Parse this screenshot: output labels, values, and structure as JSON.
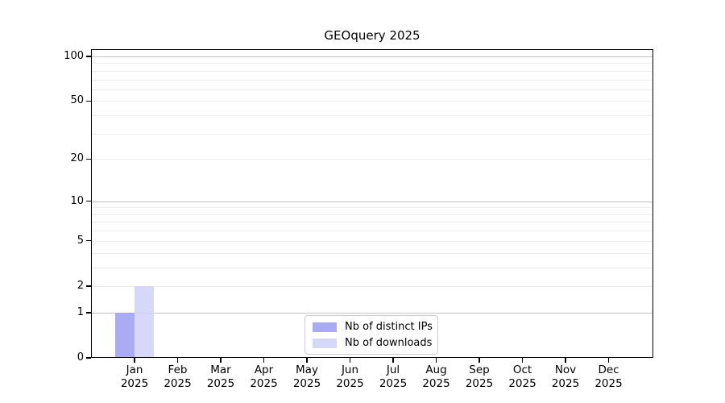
{
  "figure": {
    "title": "GEOquery 2025"
  },
  "chart_data": {
    "type": "bar",
    "title": "GEOquery 2025",
    "categories": [
      "Jan",
      "Feb",
      "Mar",
      "Apr",
      "May",
      "Jun",
      "Jul",
      "Aug",
      "Sep",
      "Oct",
      "Nov",
      "Dec"
    ],
    "category_year": "2025",
    "series": [
      {
        "name": "Nb of distinct IPs",
        "color": "#9f9ff2",
        "values": [
          1,
          0,
          0,
          0,
          0,
          0,
          0,
          0,
          0,
          0,
          0,
          0
        ]
      },
      {
        "name": "Nb of downloads",
        "color": "#d2d2f7",
        "values": [
          2,
          0,
          0,
          0,
          0,
          0,
          0,
          0,
          0,
          0,
          0,
          0
        ]
      }
    ],
    "yscale": "log1p",
    "ylim": [
      0,
      100
    ],
    "yticks": [
      0,
      1,
      2,
      5,
      10,
      20,
      50,
      100
    ],
    "minor_yticks": [
      3,
      4,
      6,
      7,
      8,
      9,
      30,
      40,
      60,
      70,
      80,
      90
    ],
    "grid": true,
    "legend_position": "lower center"
  },
  "colors": {
    "grid_major": "#c3c3c3",
    "grid_minor": "#ededed",
    "axis": "#000000",
    "legend_border": "#cccccc"
  }
}
